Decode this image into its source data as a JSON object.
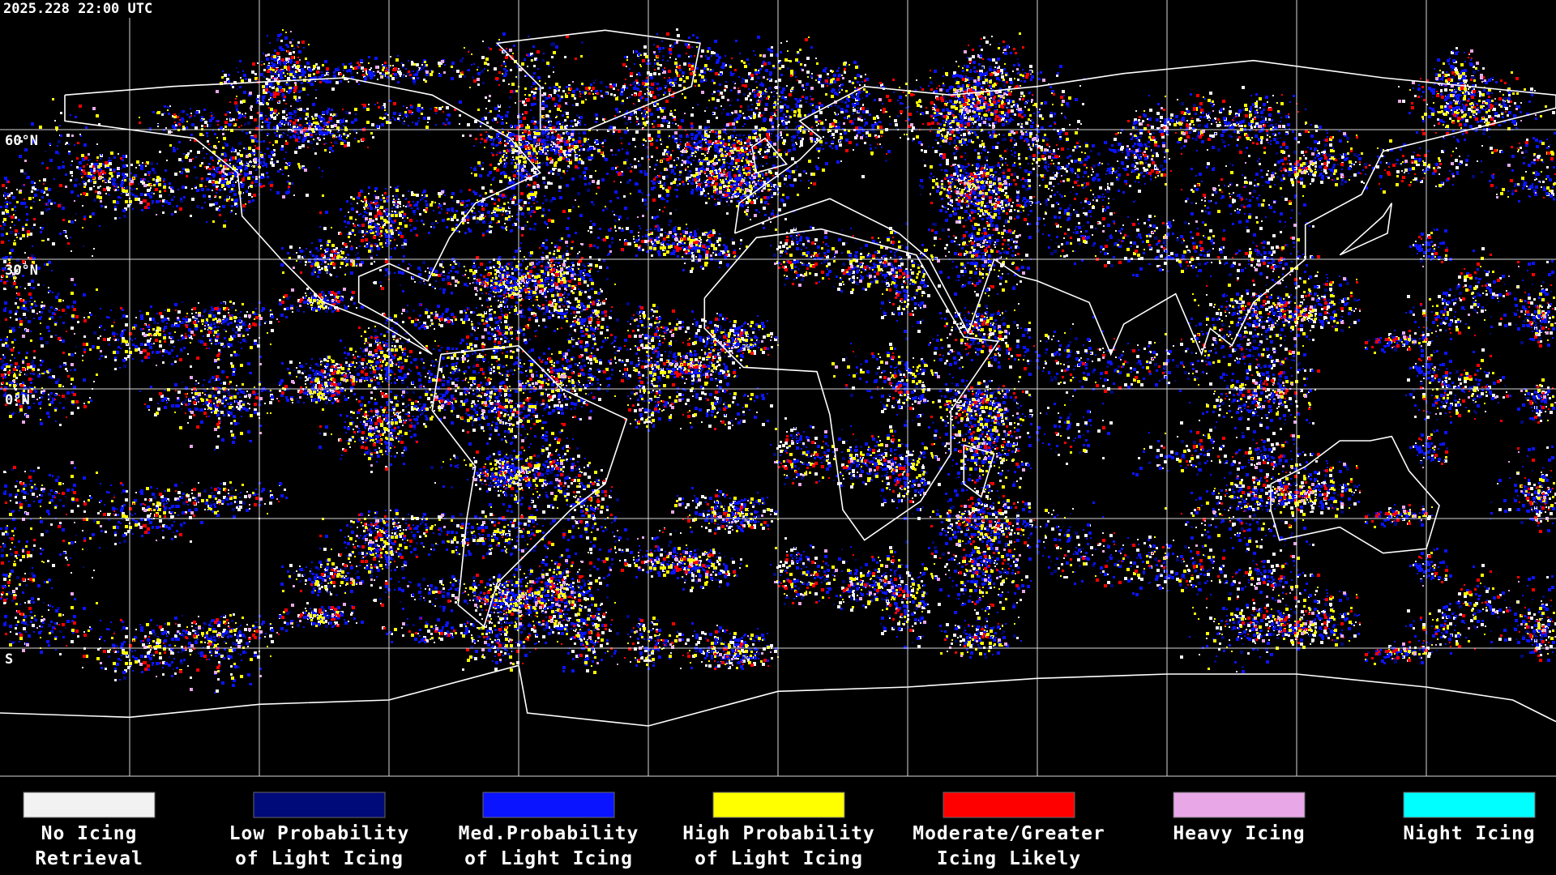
{
  "timestamp": "2025.228 22:00 UTC",
  "latitude_labels": [
    "60°N",
    "30°N",
    "0°N",
    "S"
  ],
  "legend": [
    {
      "color": "#f2f2f2",
      "lines": [
        "No Icing",
        "Retrieval"
      ]
    },
    {
      "color": "#000a78",
      "lines": [
        "Low Probability",
        "of Light Icing"
      ]
    },
    {
      "color": "#0a14ff",
      "lines": [
        "Med.Probability",
        "of Light Icing"
      ]
    },
    {
      "color": "#ffff00",
      "lines": [
        "High Probability",
        "of Light Icing"
      ]
    },
    {
      "color": "#ff0000",
      "lines": [
        "Moderate/Greater",
        "Icing Likely"
      ]
    },
    {
      "color": "#e8a8e8",
      "lines": [
        "Heavy Icing"
      ]
    },
    {
      "color": "#00ffff",
      "lines": [
        "Night Icing"
      ]
    }
  ]
}
